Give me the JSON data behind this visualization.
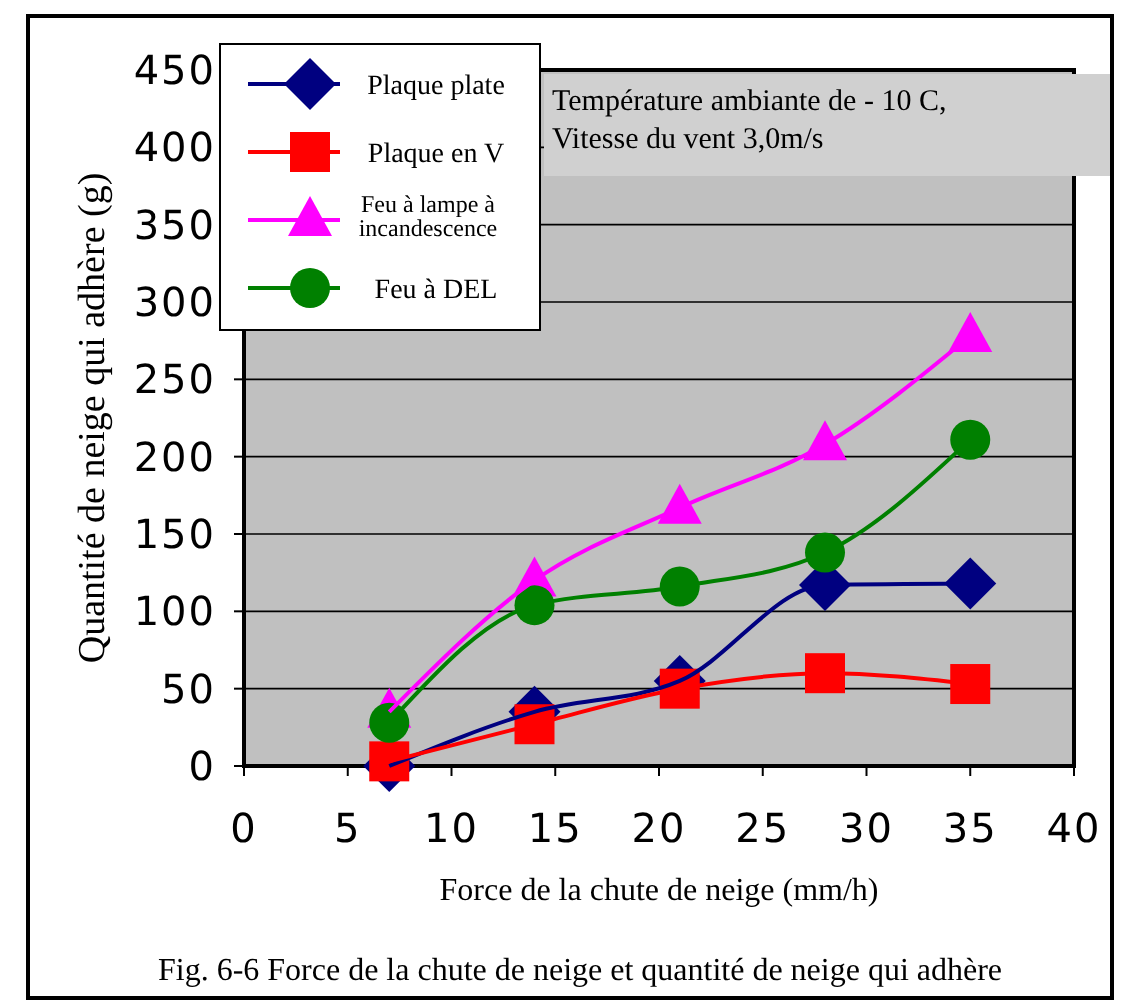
{
  "chart_data": {
    "type": "line",
    "xlabel": "Force de la chute de neige (mm/h)",
    "ylabel": "Quantité de neige qui adhère (g)",
    "x": [
      7,
      14,
      21,
      28,
      35
    ],
    "series": [
      {
        "name": "Plaque plate",
        "color": "#000080",
        "marker": "diamond",
        "values": [
          0,
          35,
          55,
          117,
          118
        ]
      },
      {
        "name": "Plaque en V",
        "color": "#ff0000",
        "marker": "square",
        "values": [
          3,
          27,
          50,
          60,
          53
        ]
      },
      {
        "name": "Feu à lampe à incandescence",
        "color": "#ff00ff",
        "marker": "triangle",
        "values": [
          35,
          120,
          167,
          208,
          278
        ]
      },
      {
        "name": "Feu à DEL",
        "color": "#008000",
        "marker": "circle",
        "values": [
          28,
          104,
          116,
          138,
          211
        ]
      }
    ],
    "xlim": [
      0,
      40
    ],
    "xticks": [
      0,
      5,
      10,
      15,
      20,
      25,
      30,
      35,
      40
    ],
    "ylim": [
      0,
      450
    ],
    "yticks": [
      0,
      50,
      100,
      150,
      200,
      250,
      300,
      350,
      400,
      450
    ],
    "grid": "y",
    "legend": "top left",
    "line_style": "solid",
    "annotations": [
      "Température ambiante de - 10 C,\nVitesse du vent 3,0m/s",
      "Fig. 6-6 Force de la chute de neige et quantité de neige qui adhère"
    ]
  }
}
